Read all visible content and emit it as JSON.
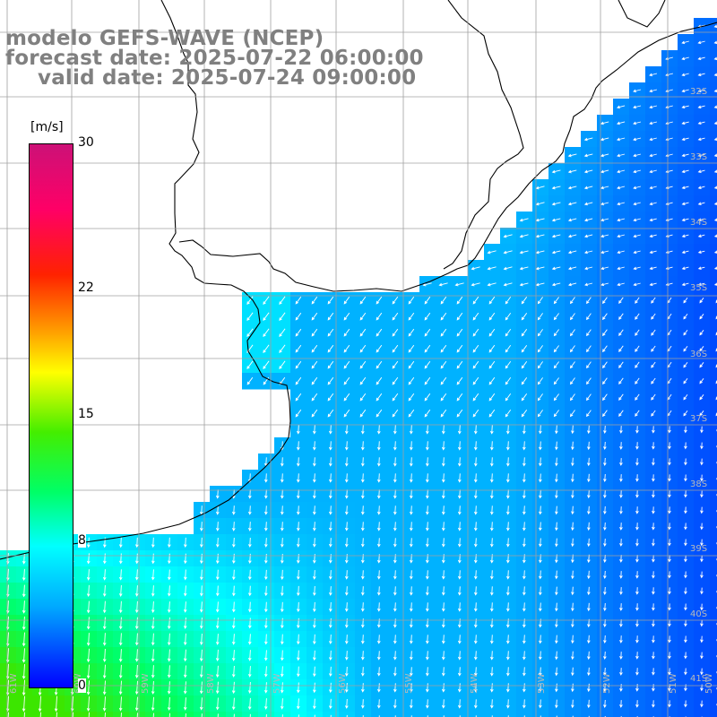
{
  "titles": {
    "line1": "modelo GEFS-WAVE (NCEP)",
    "line2": "forecast date: 2025-07-22 06:00:00",
    "line3": "valid date: 2025-07-24 09:00:00"
  },
  "colorbar": {
    "unit": "[m/s]",
    "ticks": [
      {
        "label": "30",
        "value": 30
      },
      {
        "label": "22",
        "value": 22
      },
      {
        "label": "15",
        "value": 15
      },
      {
        "label": "8",
        "value": 8
      },
      {
        "label": "0",
        "value": 0
      }
    ],
    "min": 0,
    "max": 30
  },
  "map": {
    "parameter": "wind speed",
    "lat_labels": [
      "32S",
      "33S",
      "34S",
      "35S",
      "36S",
      "37S",
      "38S",
      "39S",
      "40S",
      "41S"
    ],
    "lon_labels": [
      "61W",
      "60W",
      "59W",
      "58W",
      "57W",
      "56W",
      "55W",
      "54W",
      "53W",
      "52W",
      "51W",
      "50W"
    ],
    "land_color": "#ffffff",
    "grid_color": "#a0a0a0",
    "coast_color": "#000000",
    "arrow_color": "#ffffff"
  }
}
